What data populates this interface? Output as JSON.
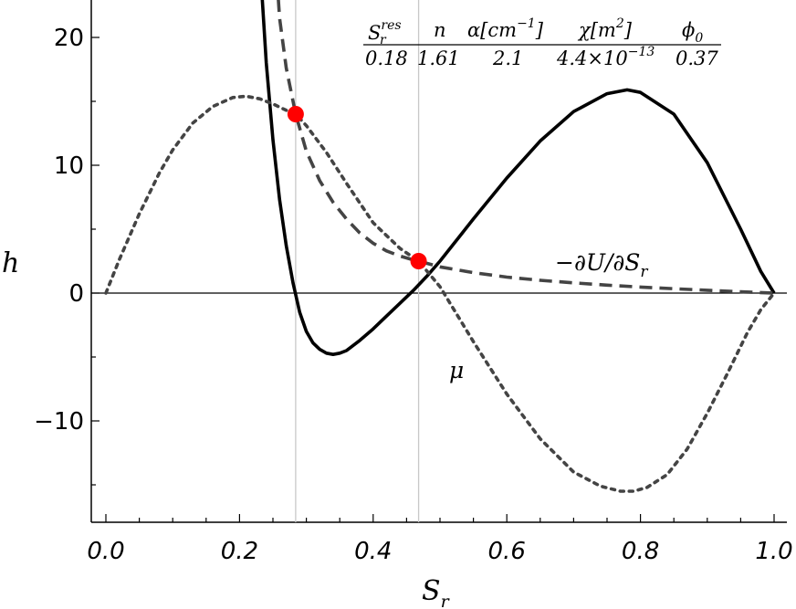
{
  "chart_data": {
    "type": "line",
    "title": "",
    "xlabel": "S",
    "xlabel_sub": "r",
    "ylabel": "h",
    "xlim": [
      0.0,
      1.0
    ],
    "ylim": [
      -18,
      23
    ],
    "xticks": [
      "0.0",
      "0.2",
      "0.4",
      "0.6",
      "0.8",
      "1.0"
    ],
    "xtick_values": [
      0.0,
      0.2,
      0.4,
      0.6,
      0.8,
      1.0
    ],
    "yticks": [
      "−10",
      "0",
      "10",
      "20"
    ],
    "ytick_values": [
      -10,
      0,
      10,
      20
    ],
    "vertical_lines": [
      0.284,
      0.468
    ],
    "parameters": {
      "headers": [
        "S",
        "n",
        "α[cm",
        "χ[m",
        "ϕ"
      ],
      "header_sup": [
        "res",
        "",
        "−1",
        "2",
        ""
      ],
      "header_sub": [
        "r",
        "",
        "",
        "",
        "0"
      ],
      "header_close": [
        "",
        "",
        "]",
        "]",
        ""
      ],
      "values": [
        "0.18",
        "1.61",
        "2.1",
        "4.4×10",
        "0.37"
      ],
      "value_sup": [
        "",
        "",
        "",
        "−13",
        ""
      ]
    },
    "series": [
      {
        "name": "h",
        "style": "solid",
        "color": "#000000",
        "x": [
          0.234,
          0.24,
          0.25,
          0.26,
          0.27,
          0.28,
          0.29,
          0.3,
          0.31,
          0.32,
          0.33,
          0.34,
          0.35,
          0.36,
          0.38,
          0.4,
          0.42,
          0.44,
          0.46,
          0.48,
          0.5,
          0.55,
          0.6,
          0.65,
          0.7,
          0.75,
          0.78,
          0.8,
          0.85,
          0.9,
          0.95,
          0.98,
          1.0
        ],
        "y": [
          23.0,
          18.0,
          12.0,
          7.3,
          3.7,
          0.8,
          -1.5,
          -3.0,
          -3.9,
          -4.4,
          -4.7,
          -4.8,
          -4.7,
          -4.5,
          -3.7,
          -2.8,
          -1.8,
          -0.8,
          0.2,
          1.3,
          2.5,
          5.8,
          9.0,
          11.9,
          14.2,
          15.6,
          15.9,
          15.7,
          14.0,
          10.2,
          5.0,
          1.7,
          0.0
        ]
      },
      {
        "name": "−∂U/∂S",
        "name_sub": "r",
        "style": "dashed",
        "color": "#444444",
        "x": [
          0.258,
          0.26,
          0.27,
          0.284,
          0.3,
          0.32,
          0.34,
          0.36,
          0.38,
          0.4,
          0.42,
          0.44,
          0.46,
          0.468,
          0.5,
          0.55,
          0.6,
          0.65,
          0.7,
          0.75,
          0.8,
          0.85,
          0.9,
          0.95,
          1.0
        ],
        "y": [
          23.0,
          21.5,
          17.6,
          14.0,
          11.1,
          8.8,
          7.1,
          5.8,
          4.7,
          3.9,
          3.3,
          2.9,
          2.6,
          2.5,
          2.05,
          1.6,
          1.25,
          1.0,
          0.8,
          0.62,
          0.47,
          0.34,
          0.22,
          0.1,
          0.0
        ]
      },
      {
        "name": "μ",
        "style": "dotted",
        "color": "#444444",
        "x": [
          0.0,
          0.02,
          0.05,
          0.08,
          0.1,
          0.13,
          0.16,
          0.19,
          0.21,
          0.23,
          0.25,
          0.27,
          0.284,
          0.3,
          0.33,
          0.36,
          0.4,
          0.44,
          0.468,
          0.5,
          0.55,
          0.6,
          0.65,
          0.7,
          0.74,
          0.77,
          0.79,
          0.81,
          0.84,
          0.87,
          0.9,
          0.93,
          0.96,
          0.98,
          1.0
        ],
        "y": [
          0.0,
          2.6,
          6.2,
          9.4,
          11.2,
          13.3,
          14.6,
          15.3,
          15.4,
          15.2,
          14.8,
          14.3,
          14.0,
          13.1,
          11.0,
          8.6,
          5.5,
          3.5,
          2.5,
          0.5,
          -3.8,
          -7.9,
          -11.4,
          -14.0,
          -15.1,
          -15.5,
          -15.5,
          -15.2,
          -14.2,
          -12.2,
          -9.4,
          -6.3,
          -3.1,
          -1.3,
          0.0
        ]
      }
    ],
    "highlight_points": [
      {
        "x": 0.284,
        "y": 14.0,
        "color": "#ff0000"
      },
      {
        "x": 0.468,
        "y": 2.5,
        "color": "#ff0000"
      }
    ],
    "annotations": [
      {
        "text": "−∂U/∂S",
        "sub": "r",
        "at": [
          0.675,
          2.3
        ]
      },
      {
        "text": "μ",
        "at": [
          0.53,
          -6.2
        ]
      }
    ]
  }
}
